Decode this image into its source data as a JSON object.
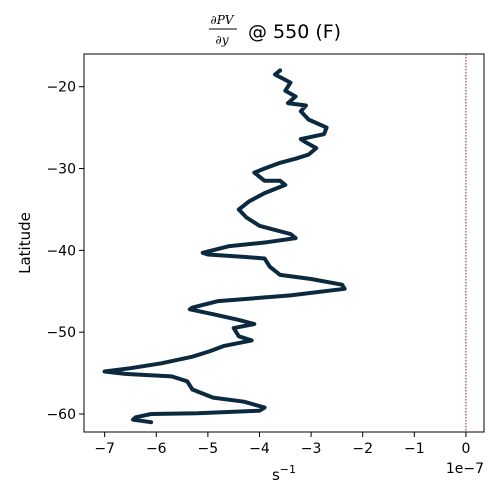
{
  "chart_data": {
    "type": "line",
    "title": {
      "numerator": "∂PV",
      "denominator": "∂y",
      "suffix": "@ 550 (F)"
    },
    "xlabel": {
      "base": "s",
      "exponent": "−1"
    },
    "ylabel": "Latitude",
    "x_offset_label": "1e−7",
    "x_scale_exponent": -7,
    "xlim": [
      -7.4,
      0.35
    ],
    "ylim": [
      -62.2,
      -16.0
    ],
    "x_ticks": [
      -7,
      -6,
      -5,
      -4,
      -3,
      -2,
      -1,
      0
    ],
    "x_tick_labels": [
      "−7",
      "−6",
      "−5",
      "−4",
      "−3",
      "−2",
      "−1",
      "0"
    ],
    "y_ticks": [
      -20,
      -30,
      -40,
      -50,
      -60
    ],
    "y_tick_labels": [
      "−20",
      "−30",
      "−40",
      "−50",
      "−60"
    ],
    "reference_line": {
      "x": 0,
      "style": "dotted",
      "color": "#8b1a1a"
    },
    "grid": false,
    "series": [
      {
        "color": "#0b2a40",
        "x": [
          -3.6,
          -3.7,
          -3.4,
          -3.5,
          -3.3,
          -3.45,
          -3.1,
          -3.2,
          -3.05,
          -2.7,
          -2.75,
          -3.2,
          -3.1,
          -2.9,
          -3.05,
          -3.3,
          -3.6,
          -3.9,
          -4.1,
          -3.9,
          -3.6,
          -3.5,
          -3.9,
          -4.2,
          -4.4,
          -4.25,
          -4.0,
          -3.7,
          -3.4,
          -3.3,
          -3.85,
          -4.6,
          -5.1,
          -5.0,
          -4.3,
          -3.9,
          -3.8,
          -3.6,
          -3.0,
          -2.4,
          -2.35,
          -3.4,
          -4.8,
          -5.3,
          -5.35,
          -4.9,
          -4.4,
          -4.1,
          -4.5,
          -4.4,
          -4.15,
          -4.7,
          -4.95,
          -5.3,
          -5.9,
          -6.5,
          -7.0,
          -6.6,
          -5.7,
          -5.4,
          -5.3,
          -4.9,
          -4.3,
          -3.9,
          -4.0,
          -5.2,
          -6.1,
          -6.4,
          -6.45,
          -6.1
        ],
        "y": [
          -18.0,
          -18.5,
          -19.5,
          -20.5,
          -21.2,
          -22.0,
          -22.3,
          -23.0,
          -24.0,
          -25.0,
          -25.8,
          -26.4,
          -26.8,
          -27.5,
          -28.3,
          -28.8,
          -29.3,
          -30.0,
          -30.5,
          -31.5,
          -31.5,
          -32.0,
          -33.0,
          -34.0,
          -35.0,
          -36.0,
          -37.0,
          -37.5,
          -38.0,
          -38.5,
          -39.0,
          -39.5,
          -40.3,
          -40.5,
          -40.8,
          -41.0,
          -42.0,
          -43.0,
          -43.5,
          -44.2,
          -44.7,
          -45.5,
          -46.2,
          -47.0,
          -47.2,
          -47.8,
          -48.5,
          -49.0,
          -49.5,
          -50.5,
          -51.0,
          -51.7,
          -52.3,
          -53.0,
          -53.8,
          -54.4,
          -54.8,
          -55.1,
          -55.4,
          -56.0,
          -57.0,
          -58.0,
          -58.5,
          -59.2,
          -59.6,
          -59.9,
          -60.0,
          -60.4,
          -60.7,
          -61.0
        ]
      }
    ]
  }
}
